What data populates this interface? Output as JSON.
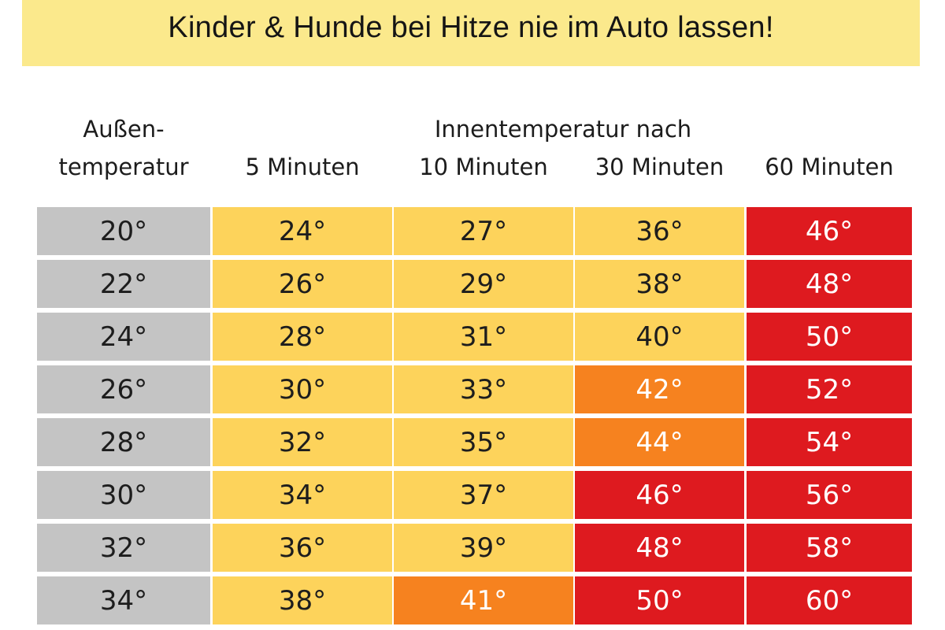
{
  "banner": {
    "text": "Kinder & Hunde bei Hitze nie im Auto lassen!"
  },
  "headers": {
    "outside_line1": "Außen-",
    "outside_line2": "temperatur",
    "inside_title": "Innentemperatur nach",
    "col_5": "5 Minuten",
    "col_10": "10 Minuten",
    "col_30": "30 Minuten",
    "col_60": "60 Minuten"
  },
  "colors": {
    "grey": "#c4c4c4",
    "yellow": "#fdd35b",
    "orange": "#f6821f",
    "red": "#de1a1f",
    "banner": "#fbe98c"
  },
  "rows": [
    {
      "outside": "20°",
      "cells": [
        {
          "v": "24°",
          "c": "yellow"
        },
        {
          "v": "27°",
          "c": "yellow"
        },
        {
          "v": "36°",
          "c": "yellow"
        },
        {
          "v": "46°",
          "c": "red"
        }
      ]
    },
    {
      "outside": "22°",
      "cells": [
        {
          "v": "26°",
          "c": "yellow"
        },
        {
          "v": "29°",
          "c": "yellow"
        },
        {
          "v": "38°",
          "c": "yellow"
        },
        {
          "v": "48°",
          "c": "red"
        }
      ]
    },
    {
      "outside": "24°",
      "cells": [
        {
          "v": "28°",
          "c": "yellow"
        },
        {
          "v": "31°",
          "c": "yellow"
        },
        {
          "v": "40°",
          "c": "yellow"
        },
        {
          "v": "50°",
          "c": "red"
        }
      ]
    },
    {
      "outside": "26°",
      "cells": [
        {
          "v": "30°",
          "c": "yellow"
        },
        {
          "v": "33°",
          "c": "yellow"
        },
        {
          "v": "42°",
          "c": "orange"
        },
        {
          "v": "52°",
          "c": "red"
        }
      ]
    },
    {
      "outside": "28°",
      "cells": [
        {
          "v": "32°",
          "c": "yellow"
        },
        {
          "v": "35°",
          "c": "yellow"
        },
        {
          "v": "44°",
          "c": "orange"
        },
        {
          "v": "54°",
          "c": "red"
        }
      ]
    },
    {
      "outside": "30°",
      "cells": [
        {
          "v": "34°",
          "c": "yellow"
        },
        {
          "v": "37°",
          "c": "yellow"
        },
        {
          "v": "46°",
          "c": "red"
        },
        {
          "v": "56°",
          "c": "red"
        }
      ]
    },
    {
      "outside": "32°",
      "cells": [
        {
          "v": "36°",
          "c": "yellow"
        },
        {
          "v": "39°",
          "c": "yellow"
        },
        {
          "v": "48°",
          "c": "red"
        },
        {
          "v": "58°",
          "c": "red"
        }
      ]
    },
    {
      "outside": "34°",
      "cells": [
        {
          "v": "38°",
          "c": "yellow"
        },
        {
          "v": "41°",
          "c": "orange"
        },
        {
          "v": "50°",
          "c": "red"
        },
        {
          "v": "60°",
          "c": "red"
        }
      ]
    }
  ]
}
